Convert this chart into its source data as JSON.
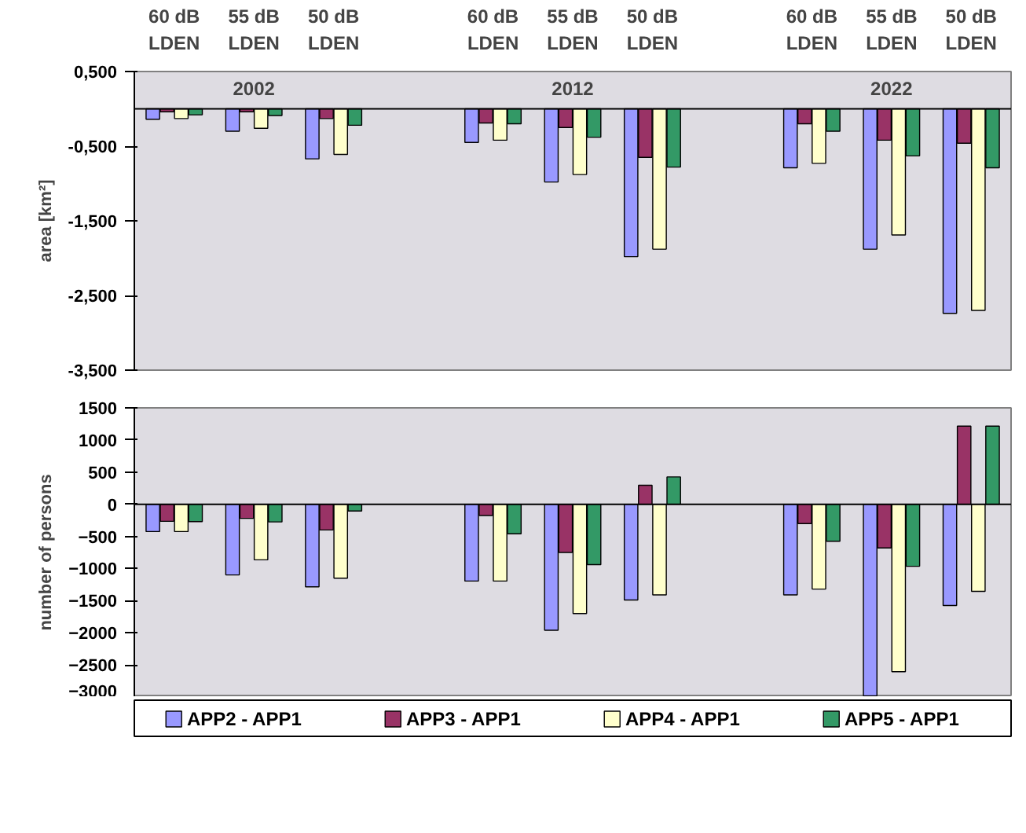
{
  "chart_data": [
    {
      "type": "bar",
      "ylabel": "area [km²]",
      "categories": [
        "60 dB LDEN",
        "55 dB LDEN",
        "50 dB LDEN",
        null,
        "60 dB LDEN",
        "55 dB LDEN",
        "50 dB LDEN",
        null,
        "60 dB LDEN",
        "55 dB LDEN",
        "50 dB LDEN"
      ],
      "series": [
        {
          "color": "#9999ff",
          "values": [
            -0.14,
            -0.3,
            -0.67,
            null,
            -0.45,
            -0.98,
            -1.98,
            null,
            -0.79,
            -1.88,
            -2.74
          ]
        },
        {
          "color": "#993366",
          "values": [
            -0.04,
            -0.04,
            -0.13,
            null,
            -0.19,
            -0.25,
            -0.65,
            null,
            -0.2,
            -0.42,
            -0.46
          ]
        },
        {
          "color": "#ffffcc",
          "values": [
            -0.13,
            -0.26,
            -0.61,
            null,
            -0.42,
            -0.88,
            -1.88,
            null,
            -0.73,
            -1.69,
            -2.7
          ]
        },
        {
          "color": "#339966",
          "values": [
            -0.08,
            -0.09,
            -0.22,
            null,
            -0.2,
            -0.38,
            -0.78,
            null,
            -0.3,
            -0.63,
            -0.79
          ]
        }
      ],
      "ylim": [
        -3.5,
        0.5
      ],
      "yticks": [
        {
          "value": 0.5,
          "label": "0,500"
        },
        {
          "value": -0.5,
          "label": "-0,500"
        },
        {
          "value": -1.5,
          "label": "-1,500"
        },
        {
          "value": -2.5,
          "label": "-2,500"
        },
        {
          "value": -3.5,
          "label": "-3,500"
        }
      ],
      "annotations": [
        "2002",
        "2012",
        "2022"
      ]
    },
    {
      "type": "bar",
      "ylabel": "number of persons",
      "categories": [
        null,
        null,
        null,
        null,
        null,
        null,
        null,
        null,
        null,
        null,
        null
      ],
      "series": [
        {
          "name": "APP2 - APP1",
          "color": "#9999ff",
          "values": [
            -425,
            -1100,
            -1285,
            null,
            -1195,
            -1960,
            -1490,
            null,
            -1410,
            -2980,
            -1575
          ]
        },
        {
          "name": "APP3 - APP1",
          "color": "#993366",
          "values": [
            -265,
            -220,
            -400,
            null,
            -175,
            -750,
            295,
            null,
            -300,
            -680,
            1215
          ]
        },
        {
          "name": "APP4 - APP1",
          "color": "#ffffcc",
          "values": [
            -425,
            -865,
            -1150,
            null,
            -1195,
            -1700,
            -1410,
            null,
            -1320,
            -2605,
            -1355
          ]
        },
        {
          "name": "APP5 - APP1",
          "color": "#339966",
          "values": [
            -270,
            -275,
            -105,
            null,
            -460,
            -940,
            425,
            null,
            -575,
            -965,
            1215
          ]
        }
      ],
      "ylim": [
        -3000,
        1500
      ],
      "yticks": [
        1500,
        1000,
        500,
        0,
        -500,
        -1000,
        -1500,
        -2000,
        -2500,
        -3000
      ],
      "tick_labels": "y",
      "legend": "bottom"
    }
  ]
}
